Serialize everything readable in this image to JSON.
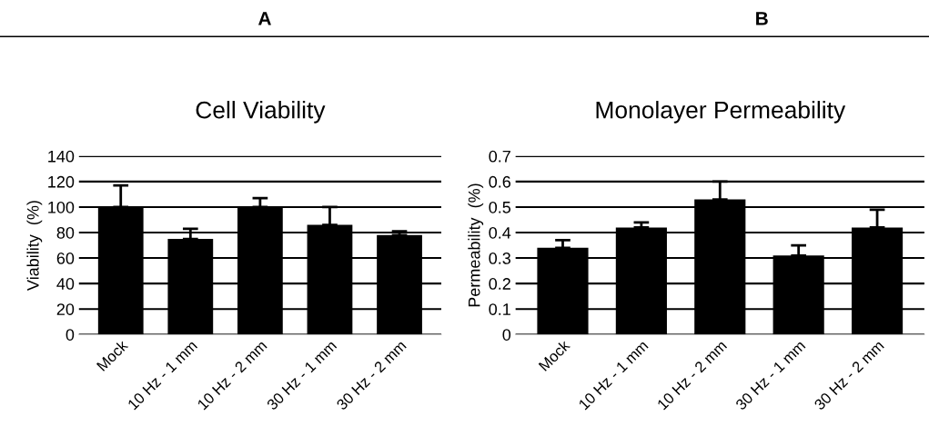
{
  "chart_data": [
    {
      "type": "bar",
      "title": "Cell Viability",
      "ylabel": "Viability  (%)",
      "annotations": [
        "A"
      ],
      "categories": [
        "Mock",
        "10 Hz - 1 mm",
        "10 Hz - 2 mm",
        "30 Hz - 1 mm",
        "30 Hz - 2 mm"
      ],
      "values": [
        100,
        75,
        100,
        86,
        78
      ],
      "color": "#000000",
      "errors": [
        [
          100,
          117
        ],
        [
          75,
          83
        ],
        [
          100,
          107
        ],
        [
          86,
          100
        ],
        [
          78,
          81
        ]
      ],
      "ylim": [
        0,
        140
      ],
      "yticks": [
        0,
        20,
        40,
        60,
        80,
        100,
        120,
        140
      ],
      "grid": "y"
    },
    {
      "type": "bar",
      "title": "Monolayer Permeability",
      "ylabel": "Permeability  (%)",
      "annotations": [
        "B"
      ],
      "categories": [
        "Mock",
        "10 Hz - 1 mm",
        "10 Hz - 2 mm",
        "30 Hz - 1 mm",
        "30 Hz - 2 mm"
      ],
      "values": [
        0.34,
        0.42,
        0.53,
        0.31,
        0.42
      ],
      "color": "#000000",
      "errors": [
        [
          0.34,
          0.37
        ],
        [
          0.42,
          0.44
        ],
        [
          0.53,
          0.6
        ],
        [
          0.31,
          0.35
        ],
        [
          0.42,
          0.49
        ]
      ],
      "ylim": [
        0,
        0.7
      ],
      "yticks": [
        0,
        0.1,
        0.2,
        0.3,
        0.4,
        0.5,
        0.6,
        0.7
      ],
      "grid": "y"
    }
  ]
}
